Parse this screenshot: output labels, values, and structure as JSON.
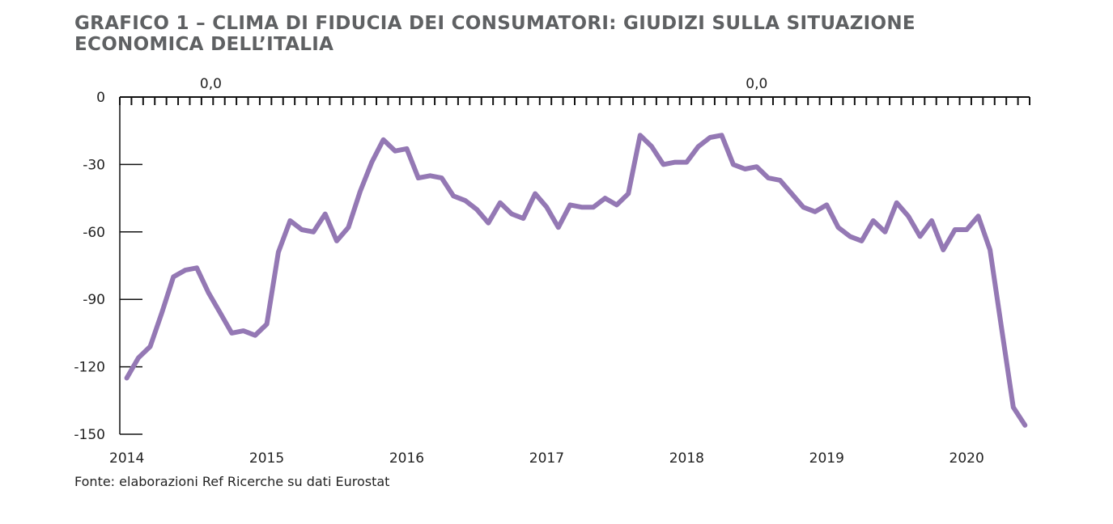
{
  "title": {
    "line1": "GRAFICO 1 – CLIMA DI FIDUCIA DEI CONSUMATORI: GIUDIZI SULLA SITUAZIONE",
    "line2": "ECONOMICA DELL’ITALIA"
  },
  "source": "Fonte: elaborazioni Ref Ricerche su dati Eurostat",
  "colors": {
    "series": "#9478b4",
    "axis": "#111111",
    "text": "#222222",
    "title": "#5f6163"
  },
  "chart_data": {
    "type": "line",
    "title": "GRAFICO 1 – CLIMA DI FIDUCIA DEI CONSUMATORI: GIUDIZI SULLA SITUAZIONE ECONOMICA DELL’ITALIA",
    "xlabel": "",
    "ylabel": "",
    "x_range": [
      2013.95,
      2020.45
    ],
    "ylim": [
      -150,
      0
    ],
    "y_ticks": [
      0,
      -30,
      -60,
      -90,
      -120,
      -150
    ],
    "y_tick_labels": [
      "0",
      "-30",
      "-60",
      "-90",
      "-120",
      "-150"
    ],
    "x_ticks": [
      2014,
      2015,
      2016,
      2017,
      2018,
      2019,
      2020
    ],
    "x_tick_labels": [
      "2014",
      "2015",
      "2016",
      "2017",
      "2018",
      "2019",
      "2020"
    ],
    "top_annotations": [
      {
        "x": 2014.6,
        "text": "0,0"
      },
      {
        "x": 2018.5,
        "text": "0,0"
      }
    ],
    "grid": false,
    "legend": "none",
    "series": [
      {
        "color": "#9478b4",
        "points": [
          [
            2014.0,
            -125
          ],
          [
            2014.083,
            -116
          ],
          [
            2014.167,
            -111
          ],
          [
            2014.25,
            -96
          ],
          [
            2014.333,
            -80
          ],
          [
            2014.417,
            -77
          ],
          [
            2014.5,
            -76
          ],
          [
            2014.583,
            -87
          ],
          [
            2014.667,
            -96
          ],
          [
            2014.75,
            -105
          ],
          [
            2014.833,
            -104
          ],
          [
            2014.917,
            -106
          ],
          [
            2015.0,
            -101
          ],
          [
            2015.083,
            -69
          ],
          [
            2015.167,
            -55
          ],
          [
            2015.25,
            -59
          ],
          [
            2015.333,
            -60
          ],
          [
            2015.417,
            -52
          ],
          [
            2015.5,
            -64
          ],
          [
            2015.583,
            -58
          ],
          [
            2015.667,
            -42
          ],
          [
            2015.75,
            -29
          ],
          [
            2015.833,
            -19
          ],
          [
            2015.917,
            -24
          ],
          [
            2016.0,
            -23
          ],
          [
            2016.083,
            -36
          ],
          [
            2016.167,
            -35
          ],
          [
            2016.25,
            -36
          ],
          [
            2016.333,
            -44
          ],
          [
            2016.417,
            -46
          ],
          [
            2016.5,
            -50
          ],
          [
            2016.583,
            -56
          ],
          [
            2016.667,
            -47
          ],
          [
            2016.75,
            -52
          ],
          [
            2016.833,
            -54
          ],
          [
            2016.917,
            -43
          ],
          [
            2017.0,
            -49
          ],
          [
            2017.083,
            -58
          ],
          [
            2017.167,
            -48
          ],
          [
            2017.25,
            -49
          ],
          [
            2017.333,
            -49
          ],
          [
            2017.417,
            -45
          ],
          [
            2017.5,
            -48
          ],
          [
            2017.583,
            -43
          ],
          [
            2017.667,
            -17
          ],
          [
            2017.75,
            -22
          ],
          [
            2017.833,
            -30
          ],
          [
            2017.917,
            -29
          ],
          [
            2018.0,
            -29
          ],
          [
            2018.083,
            -22
          ],
          [
            2018.167,
            -18
          ],
          [
            2018.25,
            -17
          ],
          [
            2018.333,
            -30
          ],
          [
            2018.417,
            -32
          ],
          [
            2018.5,
            -31
          ],
          [
            2018.583,
            -36
          ],
          [
            2018.667,
            -37
          ],
          [
            2018.75,
            -43
          ],
          [
            2018.833,
            -49
          ],
          [
            2018.917,
            -51
          ],
          [
            2019.0,
            -48
          ],
          [
            2019.083,
            -58
          ],
          [
            2019.167,
            -62
          ],
          [
            2019.25,
            -64
          ],
          [
            2019.333,
            -55
          ],
          [
            2019.417,
            -60
          ],
          [
            2019.5,
            -47
          ],
          [
            2019.583,
            -53
          ],
          [
            2019.667,
            -62
          ],
          [
            2019.75,
            -55
          ],
          [
            2019.833,
            -68
          ],
          [
            2019.917,
            -59
          ],
          [
            2020.0,
            -59
          ],
          [
            2020.083,
            -53
          ],
          [
            2020.167,
            -68
          ],
          [
            2020.25,
            -103
          ],
          [
            2020.333,
            -138
          ],
          [
            2020.417,
            -146
          ]
        ]
      }
    ]
  }
}
